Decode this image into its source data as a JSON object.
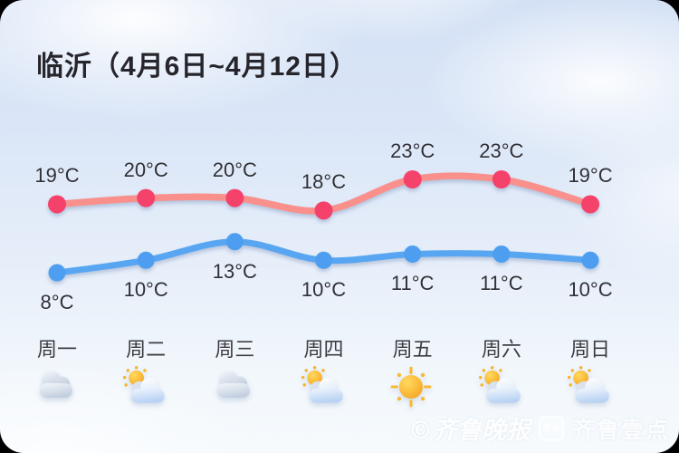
{
  "title": "临沂（4月6日~4月12日）",
  "colors": {
    "high_line": "#f9908b",
    "high_dot": "#f5426b",
    "low_line": "#58a6f1",
    "low_dot": "#4d9ef0",
    "label_text": "#2e2f37",
    "day_text": "#3b3c43"
  },
  "chart_data": {
    "type": "line",
    "categories": [
      "周一",
      "周二",
      "周三",
      "周四",
      "周五",
      "周六",
      "周日"
    ],
    "series": [
      {
        "id": "high",
        "values": [
          19,
          20,
          20,
          18,
          23,
          23,
          19
        ]
      },
      {
        "id": "low",
        "values": [
          8,
          10,
          13,
          10,
          11,
          11,
          10
        ]
      }
    ],
    "unit": "°C",
    "icons": [
      "cloudy",
      "partly-cloudy",
      "cloudy",
      "partly-cloudy",
      "sunny",
      "partly-cloudy",
      "partly-cloudy"
    ],
    "title": "临沂（4月6日~4月12日）",
    "xlabel": "",
    "ylabel": "",
    "legend": "none",
    "grid": false
  },
  "watermark": {
    "press": "©齐鲁晚报",
    "badge": "壹点",
    "brand": "齐鲁壹点"
  }
}
